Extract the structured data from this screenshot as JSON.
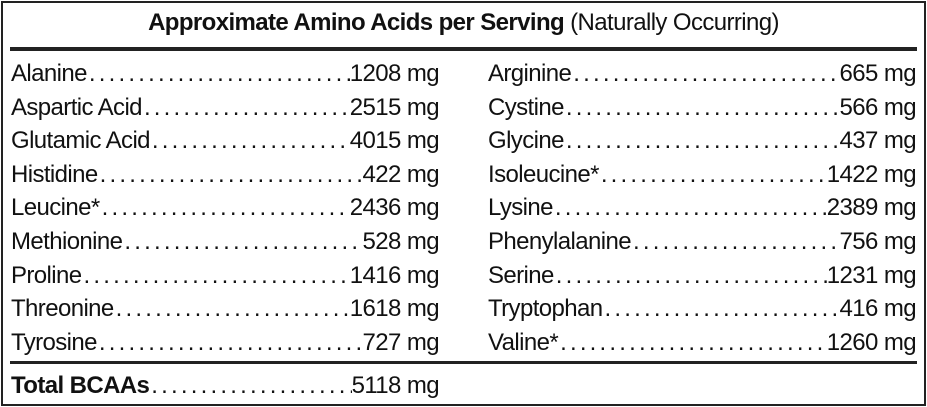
{
  "title": {
    "bold": "Approximate Amino Acids per Serving",
    "normal": "(Naturally Occurring)"
  },
  "left_column": [
    {
      "name": "Alanine",
      "value": "1208 mg"
    },
    {
      "name": "Aspartic Acid",
      "value": "2515 mg"
    },
    {
      "name": "Glutamic Acid",
      "value": "4015 mg"
    },
    {
      "name": "Histidine",
      "value": "422 mg"
    },
    {
      "name": "Leucine*",
      "value": "2436 mg"
    },
    {
      "name": "Methionine",
      "value": "528 mg"
    },
    {
      "name": "Proline",
      "value": "1416 mg"
    },
    {
      "name": "Threonine",
      "value": "1618 mg"
    },
    {
      "name": "Tyrosine",
      "value": "727 mg"
    }
  ],
  "right_column": [
    {
      "name": "Arginine",
      "value": "665 mg"
    },
    {
      "name": "Cystine",
      "value": "566 mg"
    },
    {
      "name": "Glycine",
      "value": "437 mg"
    },
    {
      "name": "Isoleucine*",
      "value": "1422 mg"
    },
    {
      "name": "Lysine",
      "value": "2389 mg"
    },
    {
      "name": "Phenylalanine",
      "value": "756 mg"
    },
    {
      "name": "Serine",
      "value": "1231 mg"
    },
    {
      "name": "Tryptophan",
      "value": "416 mg"
    },
    {
      "name": "Valine*",
      "value": "1260 mg"
    }
  ],
  "total": {
    "name": "Total BCAAs",
    "value": "5118 mg"
  }
}
